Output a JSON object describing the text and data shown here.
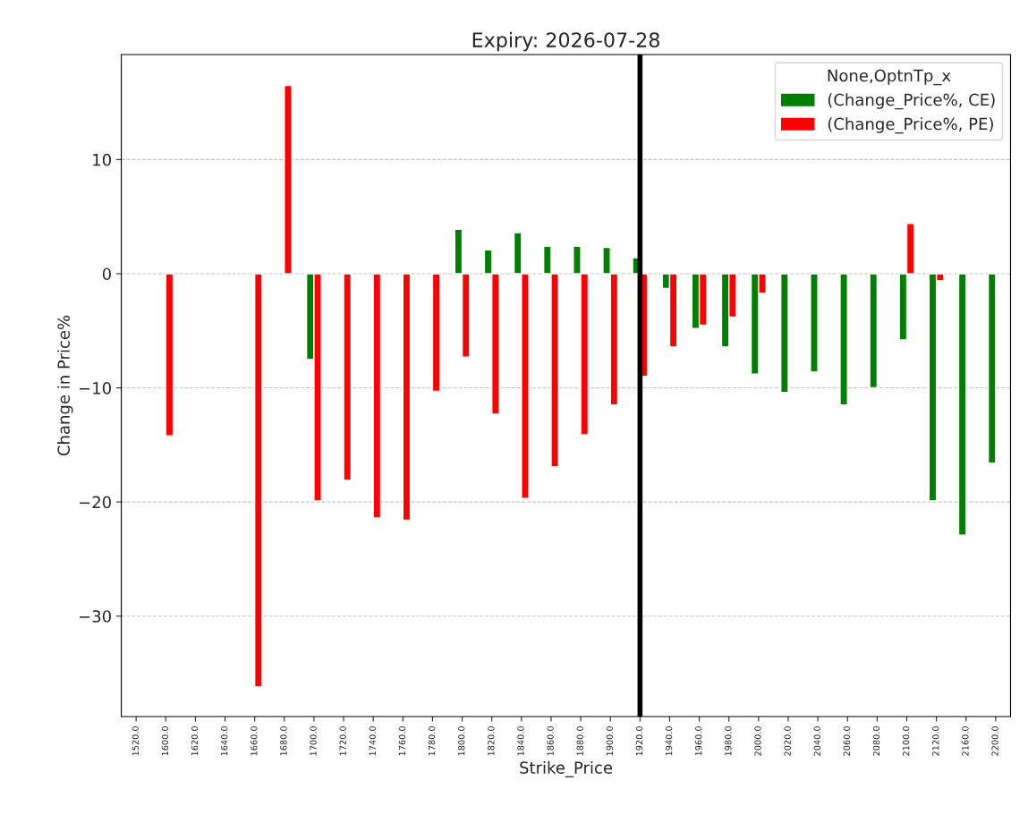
{
  "chart_data": {
    "type": "bar",
    "title": "Expiry: 2026-07-28",
    "xlabel": "Strike_Price",
    "ylabel": "Change in Price%",
    "legend_title": "None,OptnTp_x",
    "categories": [
      "1520.0",
      "1600.0",
      "1620.0",
      "1640.0",
      "1660.0",
      "1680.0",
      "1700.0",
      "1720.0",
      "1740.0",
      "1760.0",
      "1780.0",
      "1800.0",
      "1820.0",
      "1840.0",
      "1860.0",
      "1880.0",
      "1900.0",
      "1920.0",
      "1940.0",
      "1960.0",
      "1980.0",
      "2000.0",
      "2020.0",
      "2040.0",
      "2060.0",
      "2080.0",
      "2100.0",
      "2120.0",
      "2160.0",
      "2200.0"
    ],
    "series": [
      {
        "name": "(Change_Price%, CE)",
        "color": "#008000",
        "values": [
          null,
          null,
          null,
          null,
          null,
          null,
          -7.5,
          null,
          null,
          null,
          null,
          3.9,
          2.1,
          3.6,
          2.4,
          2.4,
          2.3,
          1.4,
          -1.3,
          -4.8,
          -6.4,
          -8.8,
          -10.4,
          -8.6,
          -11.5,
          -10.0,
          -5.8,
          -19.9,
          -22.9,
          -16.6
        ]
      },
      {
        "name": "(Change_Price%, PE)",
        "color": "#ff0000",
        "values": [
          null,
          -14.2,
          null,
          null,
          -36.2,
          16.5,
          -19.9,
          -18.1,
          -21.4,
          -21.6,
          -10.3,
          -7.3,
          -12.3,
          -19.7,
          -16.9,
          -14.1,
          -11.5,
          -9.0,
          -6.4,
          -4.5,
          -3.8,
          -1.7,
          null,
          null,
          null,
          null,
          4.4,
          -0.6,
          null,
          null
        ]
      }
    ],
    "ylim": [
      -38.8,
      19.2
    ],
    "yticks": [
      {
        "value": -30,
        "label": "−30"
      },
      {
        "value": -20,
        "label": "−20"
      },
      {
        "value": -10,
        "label": "−10"
      },
      0,
      10
    ],
    "grid": "y",
    "legend": "top right",
    "ref_lines": [
      {
        "axis": "x",
        "value": "1920.0",
        "color": "#000000",
        "line_style": "solid"
      }
    ]
  }
}
